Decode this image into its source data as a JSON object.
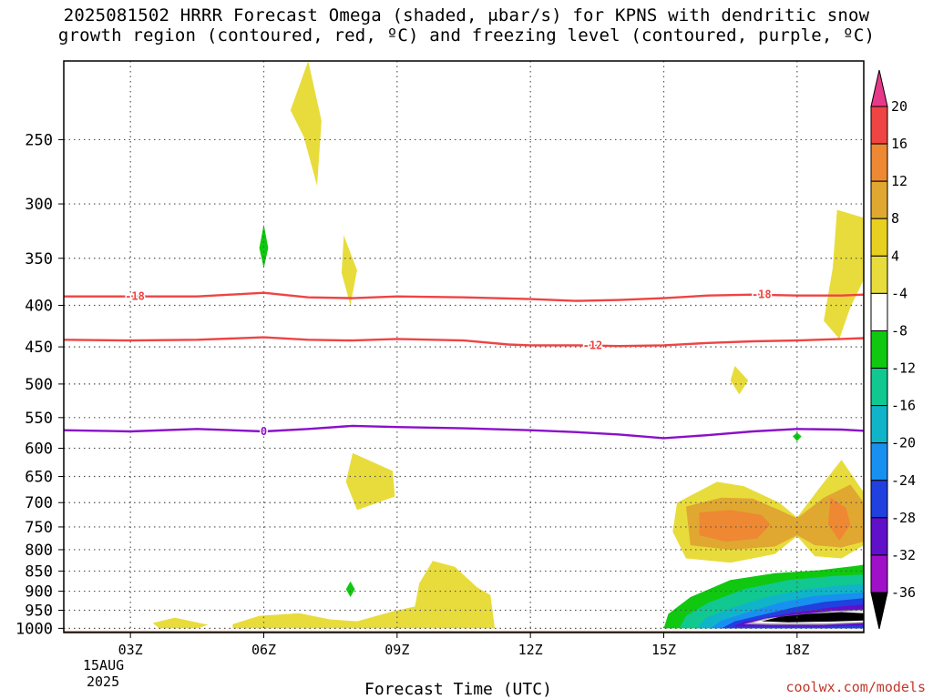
{
  "title_line1": "2025081502 HRRR Forecast Omega (shaded, μbar/s) for KPNS with dendritic snow",
  "title_line2": "growth region (contoured, red, ºC) and freezing level (contoured, purple, ºC)",
  "xlabel": "Forecast Time (UTC)",
  "date_line1": "15AUG",
  "date_line2": "2025",
  "credit": "coolwx.com/models",
  "chart_data": {
    "type": "heatmap",
    "title": "2025081502 HRRR Forecast Omega (shaded, μbar/s) for KPNS with dendritic snow growth region (contoured, red, ºC) and freezing level (contoured, purple, ºC)",
    "xlabel": "Forecast Time (UTC)",
    "ylabel": "",
    "x_ticks": [
      "03Z",
      "06Z",
      "09Z",
      "12Z",
      "15Z",
      "18Z"
    ],
    "x_tick_hours": [
      3,
      6,
      9,
      12,
      15,
      18
    ],
    "xlim_hours": [
      1.5,
      19.5
    ],
    "y_ticks": [
      250,
      300,
      350,
      400,
      450,
      500,
      550,
      600,
      650,
      700,
      750,
      800,
      850,
      900,
      950,
      1000
    ],
    "ylim_hpa": [
      200,
      1012
    ],
    "y_scale": "log",
    "grid": true,
    "colorbar": {
      "labels": [
        20,
        16,
        12,
        8,
        4,
        -4,
        -8,
        -12,
        -16,
        -20,
        -24,
        -28,
        -32,
        -36
      ],
      "colors": [
        "#e8388a",
        "#ee4444",
        "#ee8833",
        "#e0a830",
        "#e8d020",
        "#e8dc3c",
        "#ffffff",
        "#10c810",
        "#10c890",
        "#10b4c8",
        "#1890f0",
        "#2040e0",
        "#6010c8",
        "#a010c8",
        "#a8a8a8",
        "#000000"
      ]
    },
    "series": [
      {
        "name": "-18",
        "color": "#ee4444",
        "x": [
          1.5,
          3,
          4.5,
          6,
          7,
          8,
          9,
          10.5,
          12,
          13,
          14,
          15,
          16,
          17,
          18,
          19,
          19.5
        ],
        "y": [
          390,
          390,
          390,
          386,
          391,
          392,
          390,
          391,
          393,
          395,
          394,
          392,
          389,
          388,
          389,
          389,
          388
        ]
      },
      {
        "name": "-12",
        "color": "#ee4444",
        "x": [
          1.5,
          3,
          4.5,
          6,
          7,
          8,
          9,
          10.5,
          11.5,
          12,
          13,
          14,
          15,
          16,
          17,
          18,
          19,
          19.5
        ],
        "y": [
          441,
          442,
          441,
          438,
          441,
          442,
          440,
          442,
          447,
          448,
          448,
          449,
          448,
          445,
          443,
          442,
          440,
          439
        ]
      },
      {
        "name": "0",
        "color": "#8a10c8",
        "x": [
          1.5,
          3,
          4.5,
          6,
          7,
          8,
          9,
          10.5,
          12,
          13,
          14,
          15,
          16,
          17,
          18,
          19,
          19.5
        ],
        "y": [
          570,
          572,
          568,
          572,
          568,
          563,
          565,
          567,
          570,
          573,
          577,
          583,
          578,
          572,
          568,
          569,
          571
        ]
      }
    ],
    "regions": [
      {
        "color": "#e8dc3c",
        "points": [
          [
            7.0,
            200
          ],
          [
            7.3,
            237
          ],
          [
            7.2,
            285
          ],
          [
            6.9,
            248
          ],
          [
            6.6,
            230
          ]
        ]
      },
      {
        "color": "#e8dc3c",
        "points": [
          [
            7.8,
            328
          ],
          [
            8.1,
            362
          ],
          [
            7.95,
            400
          ],
          [
            7.75,
            365
          ]
        ]
      },
      {
        "color": "#e8dc3c",
        "points": [
          [
            8.0,
            608
          ],
          [
            8.9,
            640
          ],
          [
            8.95,
            688
          ],
          [
            8.1,
            715
          ],
          [
            7.85,
            660
          ]
        ]
      },
      {
        "color": "#e8dc3c",
        "points": [
          [
            16.6,
            475
          ],
          [
            16.9,
            495
          ],
          [
            16.7,
            515
          ],
          [
            16.5,
            495
          ]
        ]
      },
      {
        "color": "#e8dc3c",
        "points": [
          [
            18.9,
            305
          ],
          [
            19.5,
            312
          ],
          [
            19.5,
            372
          ],
          [
            19.2,
            402
          ],
          [
            18.95,
            440
          ],
          [
            18.6,
            418
          ],
          [
            18.8,
            360
          ]
        ]
      },
      {
        "color": "#e8dc3c",
        "points": [
          [
            3.5,
            985
          ],
          [
            4.0,
            970
          ],
          [
            4.75,
            990
          ],
          [
            4.5,
            1000
          ],
          [
            3.65,
            1000
          ]
        ]
      },
      {
        "color": "#e8dc3c",
        "points": [
          [
            5.3,
            988
          ],
          [
            5.9,
            965
          ],
          [
            6.8,
            958
          ],
          [
            7.5,
            975
          ],
          [
            8.1,
            980
          ],
          [
            8.9,
            953
          ],
          [
            9.4,
            940
          ],
          [
            9.5,
            880
          ],
          [
            9.8,
            826
          ],
          [
            10.3,
            840
          ],
          [
            10.8,
            890
          ],
          [
            11.1,
            910
          ],
          [
            11.2,
            1000
          ],
          [
            5.3,
            1000
          ]
        ]
      },
      {
        "color": "#e8dc3c",
        "points": [
          [
            15.3,
            700
          ],
          [
            16.2,
            660
          ],
          [
            16.8,
            668
          ],
          [
            17.6,
            700
          ],
          [
            18.0,
            730
          ],
          [
            18.5,
            672
          ],
          [
            19.0,
            620
          ],
          [
            19.5,
            680
          ],
          [
            19.5,
            790
          ],
          [
            19.0,
            820
          ],
          [
            18.4,
            815
          ],
          [
            18.0,
            770
          ],
          [
            17.5,
            810
          ],
          [
            16.5,
            830
          ],
          [
            15.5,
            820
          ],
          [
            15.2,
            760
          ]
        ]
      },
      {
        "color": "#e0a830",
        "points": [
          [
            15.5,
            708
          ],
          [
            16.3,
            690
          ],
          [
            17.0,
            692
          ],
          [
            17.6,
            715
          ],
          [
            18.0,
            732
          ],
          [
            18.6,
            690
          ],
          [
            19.2,
            665
          ],
          [
            19.5,
            700
          ],
          [
            19.5,
            782
          ],
          [
            19.0,
            795
          ],
          [
            18.4,
            790
          ],
          [
            18.0,
            768
          ],
          [
            17.5,
            793
          ],
          [
            16.5,
            800
          ],
          [
            15.6,
            790
          ]
        ]
      },
      {
        "color": "#ee8833",
        "points": [
          [
            15.8,
            720
          ],
          [
            16.5,
            715
          ],
          [
            17.2,
            725
          ],
          [
            17.4,
            745
          ],
          [
            17.1,
            775
          ],
          [
            16.4,
            782
          ],
          [
            15.8,
            768
          ]
        ]
      },
      {
        "color": "#ee8833",
        "points": [
          [
            18.75,
            690
          ],
          [
            19.1,
            710
          ],
          [
            19.2,
            745
          ],
          [
            18.95,
            780
          ],
          [
            18.7,
            745
          ]
        ]
      },
      {
        "color": "#10c810",
        "points": [
          [
            15.0,
            1000
          ],
          [
            15.1,
            960
          ],
          [
            15.6,
            915
          ],
          [
            16.5,
            872
          ],
          [
            17.5,
            855
          ],
          [
            18.5,
            848
          ],
          [
            19.3,
            838
          ],
          [
            19.5,
            835
          ],
          [
            19.5,
            1000
          ]
        ]
      },
      {
        "color": "#10c890",
        "points": [
          [
            15.35,
            1000
          ],
          [
            15.5,
            965
          ],
          [
            16.0,
            930
          ],
          [
            16.8,
            895
          ],
          [
            17.8,
            872
          ],
          [
            18.8,
            862
          ],
          [
            19.5,
            858
          ],
          [
            19.5,
            1000
          ]
        ]
      },
      {
        "color": "#10b4c8",
        "points": [
          [
            15.75,
            1000
          ],
          [
            15.95,
            970
          ],
          [
            16.5,
            945
          ],
          [
            17.3,
            915
          ],
          [
            18.2,
            895
          ],
          [
            19.0,
            885
          ],
          [
            19.5,
            882
          ],
          [
            19.5,
            1000
          ]
        ]
      },
      {
        "color": "#1890f0",
        "points": [
          [
            16.05,
            1000
          ],
          [
            16.3,
            978
          ],
          [
            16.9,
            955
          ],
          [
            17.6,
            930
          ],
          [
            18.4,
            912
          ],
          [
            19.2,
            905
          ],
          [
            19.5,
            903
          ],
          [
            19.5,
            1000
          ]
        ]
      },
      {
        "color": "#2040e0",
        "points": [
          [
            16.3,
            1000
          ],
          [
            16.6,
            980
          ],
          [
            17.2,
            963
          ],
          [
            17.9,
            943
          ],
          [
            18.6,
            928
          ],
          [
            19.5,
            918
          ],
          [
            19.5,
            1000
          ]
        ]
      },
      {
        "color": "#6010c8",
        "points": [
          [
            16.55,
            995
          ],
          [
            16.8,
            982
          ],
          [
            17.4,
            968
          ],
          [
            18.0,
            955
          ],
          [
            18.8,
            942
          ],
          [
            19.5,
            935
          ],
          [
            19.5,
            992
          ],
          [
            18.5,
            996
          ]
        ]
      },
      {
        "color": "#a8a8a8",
        "points": [
          [
            16.8,
            988
          ],
          [
            17.3,
            972
          ],
          [
            18.0,
            962
          ],
          [
            18.8,
            952
          ],
          [
            19.5,
            948
          ],
          [
            19.5,
            985
          ],
          [
            18.6,
            990
          ],
          [
            17.4,
            990
          ]
        ]
      },
      {
        "color": "#ffffff",
        "points": [
          [
            17.0,
            984
          ],
          [
            17.5,
            970
          ],
          [
            18.1,
            962
          ],
          [
            18.8,
            955
          ],
          [
            19.5,
            952
          ],
          [
            19.5,
            982
          ],
          [
            18.6,
            986
          ],
          [
            17.4,
            986
          ]
        ]
      },
      {
        "color": "#000000",
        "points": [
          [
            17.2,
            980
          ],
          [
            17.6,
            968
          ],
          [
            18.2,
            960
          ],
          [
            19.0,
            955
          ],
          [
            19.5,
            958
          ],
          [
            19.5,
            978
          ],
          [
            18.8,
            981
          ],
          [
            17.8,
            983
          ]
        ]
      },
      {
        "color": "#10c810",
        "points": [
          [
            7.95,
            875
          ],
          [
            8.05,
            895
          ],
          [
            7.95,
            915
          ],
          [
            7.85,
            895
          ]
        ]
      },
      {
        "color": "#10c810",
        "points": [
          [
            6.0,
            318
          ],
          [
            6.1,
            340
          ],
          [
            6.0,
            360
          ],
          [
            5.9,
            340
          ]
        ]
      },
      {
        "color": "#10c810",
        "points": [
          [
            18.0,
            574
          ],
          [
            18.1,
            580
          ],
          [
            18.0,
            588
          ],
          [
            17.9,
            580
          ]
        ]
      }
    ],
    "contour_labels": [
      {
        "text": "-18",
        "x": 3.1,
        "y": 390,
        "color": "#ee4444"
      },
      {
        "text": "-18",
        "x": 17.2,
        "y": 388,
        "color": "#ee4444"
      },
      {
        "text": "-12",
        "x": 13.4,
        "y": 448,
        "color": "#ee4444"
      },
      {
        "text": "0",
        "x": 6.0,
        "y": 572,
        "color": "#8a10c8"
      }
    ],
    "ground_color": "#a0522d"
  }
}
